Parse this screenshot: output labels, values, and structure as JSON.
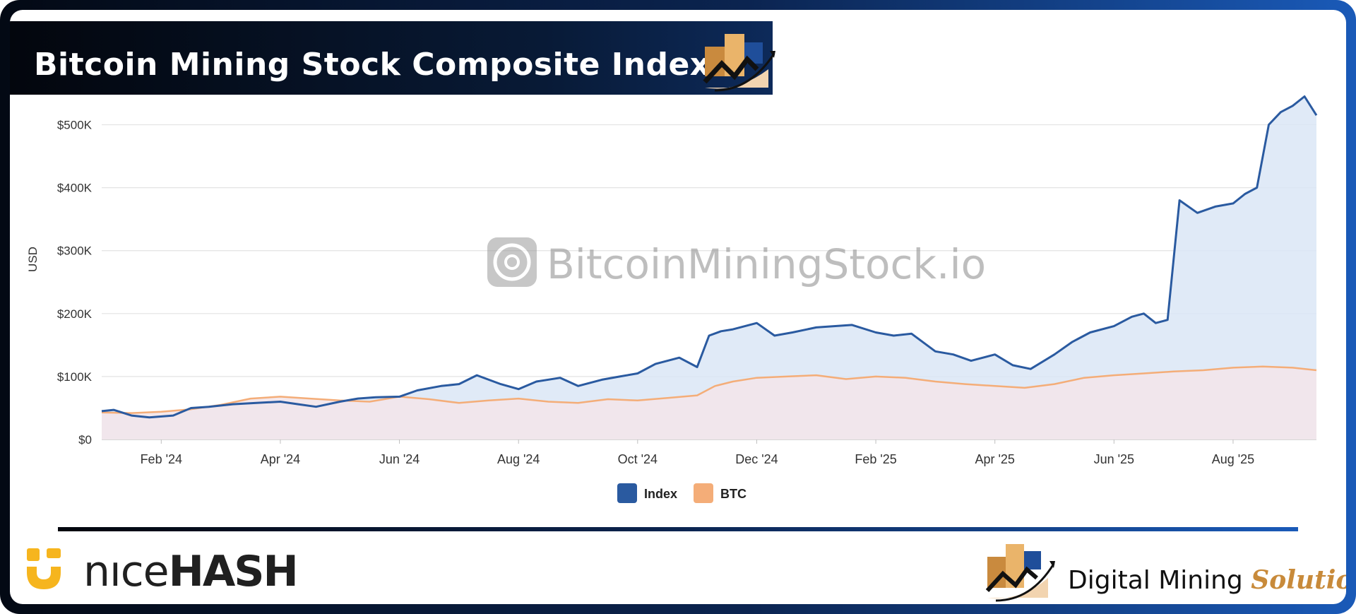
{
  "header": {
    "title": "Bitcoin Mining Stock Composite Index"
  },
  "watermark": {
    "text": "BitcoinMiningStock.io"
  },
  "footer": {
    "nicehash_prefix": "nıce",
    "nicehash_suffix": "HASH",
    "dms_main": "Digital Mining",
    "dms_accent": "Solutions"
  },
  "colors": {
    "index": "#2a5aa0",
    "btc": "#f4ad78",
    "index_fill": "#dbe6f6",
    "btc_fill": "#f3e6ea",
    "accent": "#c88a3a"
  },
  "chart_data": {
    "type": "area",
    "title": "",
    "xlabel": "",
    "ylabel": "USD",
    "ylim": [
      0,
      550000
    ],
    "yticks": [
      0,
      100000,
      200000,
      300000,
      400000,
      500000
    ],
    "ytick_labels": [
      "$0",
      "$100K",
      "$200K",
      "$300K",
      "$400K",
      "$500K"
    ],
    "xlim": [
      0,
      20.4
    ],
    "xticks": [
      1,
      3,
      5,
      7,
      9,
      11,
      13,
      15,
      17,
      19
    ],
    "xtick_labels": [
      "Feb '24",
      "Apr '24",
      "Jun '24",
      "Aug '24",
      "Oct '24",
      "Dec '24",
      "Feb '25",
      "Apr '25",
      "Jun '25",
      "Aug '25"
    ],
    "legend": [
      "Index",
      "BTC"
    ],
    "legend_position": "bottom-center",
    "series": [
      {
        "name": "Index",
        "x": [
          0,
          0.2,
          0.5,
          0.8,
          1.2,
          1.5,
          1.8,
          2.2,
          2.6,
          3.0,
          3.3,
          3.6,
          4.0,
          4.3,
          4.6,
          5.0,
          5.3,
          5.7,
          6.0,
          6.3,
          6.7,
          7.0,
          7.3,
          7.7,
          8.0,
          8.4,
          8.7,
          9.0,
          9.3,
          9.7,
          10.0,
          10.2,
          10.4,
          10.6,
          11.0,
          11.3,
          11.6,
          12.0,
          12.3,
          12.6,
          13.0,
          13.3,
          13.6,
          14.0,
          14.3,
          14.6,
          15.0,
          15.3,
          15.6,
          16.0,
          16.3,
          16.6,
          17.0,
          17.3,
          17.5,
          17.7,
          17.9,
          18.1,
          18.4,
          18.7,
          19.0,
          19.2,
          19.4,
          19.6,
          19.8,
          20.0,
          20.2,
          20.4
        ],
        "y": [
          45000,
          47000,
          38000,
          35000,
          38000,
          50000,
          52000,
          56000,
          58000,
          60000,
          56000,
          52000,
          60000,
          65000,
          67000,
          68000,
          78000,
          85000,
          88000,
          102000,
          88000,
          80000,
          92000,
          98000,
          85000,
          95000,
          100000,
          105000,
          120000,
          130000,
          115000,
          165000,
          172000,
          175000,
          185000,
          165000,
          170000,
          178000,
          180000,
          182000,
          170000,
          165000,
          168000,
          140000,
          135000,
          125000,
          135000,
          118000,
          112000,
          135000,
          155000,
          170000,
          180000,
          195000,
          200000,
          185000,
          190000,
          380000,
          360000,
          370000,
          375000,
          390000,
          400000,
          500000,
          520000,
          530000,
          545000,
          515000
        ]
      },
      {
        "name": "BTC",
        "x": [
          0,
          0.5,
          1.0,
          1.5,
          2.0,
          2.5,
          3.0,
          3.5,
          4.0,
          4.5,
          5.0,
          5.5,
          6.0,
          6.5,
          7.0,
          7.5,
          8.0,
          8.5,
          9.0,
          9.5,
          10.0,
          10.3,
          10.6,
          11.0,
          11.5,
          12.0,
          12.5,
          13.0,
          13.5,
          14.0,
          14.5,
          15.0,
          15.5,
          16.0,
          16.5,
          17.0,
          17.5,
          18.0,
          18.5,
          19.0,
          19.5,
          20.0,
          20.4
        ],
        "y": [
          43000,
          42000,
          44000,
          48000,
          55000,
          65000,
          68000,
          65000,
          62000,
          60000,
          68000,
          64000,
          58000,
          62000,
          65000,
          60000,
          58000,
          64000,
          62000,
          66000,
          70000,
          85000,
          92000,
          98000,
          100000,
          102000,
          96000,
          100000,
          98000,
          92000,
          88000,
          85000,
          82000,
          88000,
          98000,
          102000,
          105000,
          108000,
          110000,
          114000,
          116000,
          114000,
          110000
        ]
      }
    ]
  }
}
